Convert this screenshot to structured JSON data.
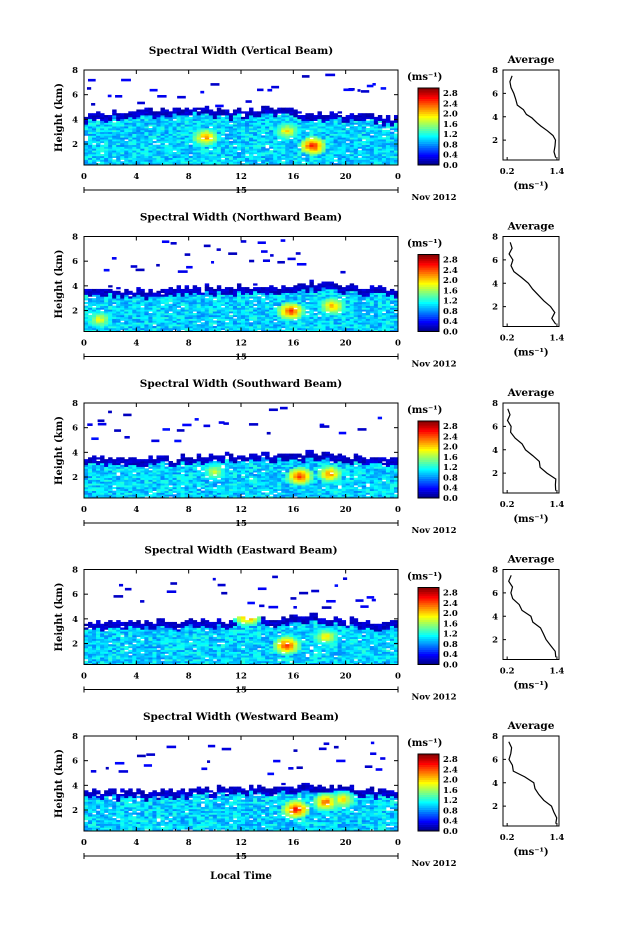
{
  "chart_data": [
    {
      "type": "heatmap",
      "title": "Spectral Width (Vertical Beam)",
      "ylabel": "Height (km)",
      "x_ticks": [
        "0",
        "4",
        "8",
        "12",
        "16",
        "20",
        "0"
      ],
      "y_ticks": [
        "2",
        "4",
        "6",
        "8"
      ],
      "date_label": "15",
      "date_suffix": "Nov 2012",
      "colorbar": {
        "unit": "(ms⁻¹)",
        "ticks": [
          "0.0",
          "0.4",
          "0.8",
          "1.2",
          "1.6",
          "2.0",
          "2.4",
          "2.8"
        ],
        "range": [
          0.0,
          3.0
        ]
      },
      "data_top_km": [
        4.2,
        4.5,
        4.8,
        4.7,
        4.9,
        4.6,
        4.8,
        4.8,
        4.5,
        4.4,
        4.3,
        4.0
      ],
      "hotspots": [
        {
          "x": 17.5,
          "y": 1.8,
          "v": 2.6
        },
        {
          "x": 9.3,
          "y": 2.5,
          "v": 2.2
        },
        {
          "x": 15.5,
          "y": 3.0,
          "v": 1.9
        }
      ],
      "average": {
        "title": "Average",
        "xlabel": "(ms⁻¹)",
        "x_ticks": [
          "0.2",
          "1.4"
        ],
        "y_ticks": [
          "2",
          "4",
          "6",
          "8"
        ],
        "profile": [
          [
            1.4,
            0.5
          ],
          [
            1.38,
            1.0
          ],
          [
            1.4,
            1.5
          ],
          [
            1.35,
            2.0
          ],
          [
            1.28,
            2.4
          ],
          [
            1.2,
            2.8
          ],
          [
            1.05,
            3.2
          ],
          [
            0.95,
            3.5
          ],
          [
            0.8,
            3.9
          ],
          [
            0.65,
            4.2
          ],
          [
            0.55,
            4.6
          ],
          [
            0.5,
            5.0
          ],
          [
            0.42,
            5.5
          ],
          [
            0.38,
            6.0
          ],
          [
            0.34,
            6.5
          ],
          [
            0.3,
            7.0
          ],
          [
            0.28,
            7.5
          ]
        ]
      }
    },
    {
      "type": "heatmap",
      "title": "Spectral Width (Northward Beam)",
      "ylabel": "Height (km)",
      "x_ticks": [
        "0",
        "4",
        "8",
        "12",
        "16",
        "20",
        "0"
      ],
      "y_ticks": [
        "2",
        "4",
        "6",
        "8"
      ],
      "date_label": "15",
      "date_suffix": "Nov 2012",
      "colorbar": {
        "unit": "(ms⁻¹)",
        "ticks": [
          "0.0",
          "0.4",
          "0.8",
          "1.2",
          "1.6",
          "2.0",
          "2.4",
          "2.8"
        ],
        "range": [
          0.0,
          3.0
        ]
      },
      "data_top_km": [
        3.8,
        3.7,
        3.6,
        3.8,
        3.9,
        3.8,
        4.0,
        3.9,
        4.2,
        4.0,
        3.8,
        3.6
      ],
      "hotspots": [
        {
          "x": 15.8,
          "y": 1.9,
          "v": 2.5
        },
        {
          "x": 19.0,
          "y": 2.3,
          "v": 2.1
        },
        {
          "x": 1.2,
          "y": 1.2,
          "v": 1.8
        }
      ],
      "average": {
        "title": "Average",
        "xlabel": "(ms⁻¹)",
        "x_ticks": [
          "0.2",
          "1.4"
        ],
        "y_ticks": [
          "2",
          "4",
          "6",
          "8"
        ],
        "profile": [
          [
            1.4,
            0.5
          ],
          [
            1.25,
            1.0
          ],
          [
            1.3,
            1.5
          ],
          [
            1.2,
            2.0
          ],
          [
            1.1,
            2.5
          ],
          [
            0.95,
            3.0
          ],
          [
            0.85,
            3.5
          ],
          [
            0.7,
            4.0
          ],
          [
            0.6,
            4.5
          ],
          [
            0.42,
            5.0
          ],
          [
            0.35,
            5.5
          ],
          [
            0.3,
            6.0
          ],
          [
            0.28,
            6.5
          ],
          [
            0.26,
            7.0
          ],
          [
            0.25,
            7.5
          ]
        ]
      }
    },
    {
      "type": "heatmap",
      "title": "Spectral Width (Southward Beam)",
      "ylabel": "Height (km)",
      "x_ticks": [
        "0",
        "4",
        "8",
        "12",
        "16",
        "20",
        "0"
      ],
      "y_ticks": [
        "2",
        "4",
        "6",
        "8"
      ],
      "date_label": "15",
      "date_suffix": "Nov 2012",
      "colorbar": {
        "unit": "(ms⁻¹)",
        "ticks": [
          "0.0",
          "0.4",
          "0.8",
          "1.2",
          "1.6",
          "2.0",
          "2.4",
          "2.8"
        ],
        "range": [
          0.0,
          3.0
        ]
      },
      "data_top_km": [
        3.5,
        3.5,
        3.4,
        3.5,
        3.6,
        3.7,
        3.8,
        3.8,
        3.9,
        3.7,
        3.6,
        3.5
      ],
      "hotspots": [
        {
          "x": 16.5,
          "y": 2.0,
          "v": 2.5
        },
        {
          "x": 18.8,
          "y": 2.2,
          "v": 2.2
        },
        {
          "x": 10.0,
          "y": 2.4,
          "v": 1.7
        }
      ],
      "average": {
        "title": "Average",
        "xlabel": "(ms⁻¹)",
        "x_ticks": [
          "0.2",
          "1.4"
        ],
        "y_ticks": [
          "2",
          "4",
          "6",
          "8"
        ],
        "profile": [
          [
            1.4,
            0.5
          ],
          [
            1.38,
            1.0
          ],
          [
            1.35,
            1.5
          ],
          [
            1.2,
            2.0
          ],
          [
            1.05,
            2.5
          ],
          [
            0.95,
            3.0
          ],
          [
            0.85,
            3.5
          ],
          [
            0.7,
            4.0
          ],
          [
            0.55,
            4.5
          ],
          [
            0.4,
            5.0
          ],
          [
            0.32,
            5.5
          ],
          [
            0.28,
            6.0
          ],
          [
            0.26,
            6.5
          ],
          [
            0.25,
            7.0
          ],
          [
            0.24,
            7.5
          ]
        ]
      }
    },
    {
      "type": "heatmap",
      "title": "Spectral Width (Eastward Beam)",
      "ylabel": "Height (km)",
      "x_ticks": [
        "0",
        "4",
        "8",
        "12",
        "16",
        "20",
        "0"
      ],
      "y_ticks": [
        "2",
        "4",
        "6",
        "8"
      ],
      "date_label": "15",
      "date_suffix": "Nov 2012",
      "colorbar": {
        "unit": "(ms⁻¹)",
        "ticks": [
          "0.0",
          "0.4",
          "0.8",
          "1.2",
          "1.6",
          "2.0",
          "2.4",
          "2.8"
        ],
        "range": [
          0.0,
          3.0
        ]
      },
      "data_top_km": [
        3.6,
        3.7,
        3.8,
        3.7,
        3.9,
        3.8,
        4.1,
        4.0,
        4.3,
        4.0,
        3.8,
        3.6
      ],
      "hotspots": [
        {
          "x": 12.5,
          "y": 4.1,
          "v": 2.3
        },
        {
          "x": 15.5,
          "y": 1.8,
          "v": 2.5
        },
        {
          "x": 18.5,
          "y": 2.5,
          "v": 1.9
        }
      ],
      "average": {
        "title": "Average",
        "xlabel": "(ms⁻¹)",
        "x_ticks": [
          "0.2",
          "1.4"
        ],
        "y_ticks": [
          "2",
          "4",
          "6",
          "8"
        ],
        "profile": [
          [
            1.4,
            0.5
          ],
          [
            1.3,
            1.0
          ],
          [
            1.25,
            1.5
          ],
          [
            1.15,
            2.0
          ],
          [
            1.05,
            2.5
          ],
          [
            0.95,
            3.0
          ],
          [
            0.85,
            3.5
          ],
          [
            0.78,
            4.0
          ],
          [
            0.6,
            4.5
          ],
          [
            0.45,
            5.0
          ],
          [
            0.35,
            5.5
          ],
          [
            0.3,
            6.0
          ],
          [
            0.28,
            6.5
          ],
          [
            0.26,
            7.0
          ],
          [
            0.25,
            7.5
          ]
        ]
      }
    },
    {
      "type": "heatmap",
      "title": "Spectral Width (Westward Beam)",
      "ylabel": "Height (km)",
      "x_ticks": [
        "0",
        "4",
        "8",
        "12",
        "16",
        "20",
        "0"
      ],
      "y_ticks": [
        "2",
        "4",
        "6",
        "8"
      ],
      "date_label": "15",
      "date_suffix": "Nov 2012",
      "colorbar": {
        "unit": "(ms⁻¹)",
        "ticks": [
          "0.0",
          "0.4",
          "0.8",
          "1.2",
          "1.6",
          "2.0",
          "2.4",
          "2.8"
        ],
        "range": [
          0.0,
          3.0
        ]
      },
      "data_top_km": [
        3.6,
        3.5,
        3.4,
        3.5,
        3.6,
        3.7,
        3.8,
        3.9,
        4.0,
        3.8,
        3.6,
        3.5
      ],
      "hotspots": [
        {
          "x": 16.2,
          "y": 2.0,
          "v": 2.6
        },
        {
          "x": 18.5,
          "y": 2.6,
          "v": 2.3
        },
        {
          "x": 19.8,
          "y": 2.8,
          "v": 2.0
        }
      ],
      "average": {
        "title": "Average",
        "xlabel": "(ms⁻¹)",
        "x_ticks": [
          "0.2",
          "1.4"
        ],
        "y_ticks": [
          "2",
          "4",
          "6",
          "8"
        ],
        "profile": [
          [
            1.4,
            0.5
          ],
          [
            1.38,
            1.0
          ],
          [
            1.35,
            1.5
          ],
          [
            1.25,
            2.0
          ],
          [
            1.1,
            2.5
          ],
          [
            1.0,
            3.0
          ],
          [
            0.9,
            3.5
          ],
          [
            0.8,
            4.0
          ],
          [
            0.6,
            4.5
          ],
          [
            0.38,
            5.0
          ],
          [
            0.32,
            5.5
          ],
          [
            0.28,
            6.0
          ],
          [
            0.26,
            6.5
          ],
          [
            0.25,
            7.0
          ],
          [
            0.24,
            7.5
          ]
        ]
      }
    }
  ],
  "xlabel": "Local Time"
}
